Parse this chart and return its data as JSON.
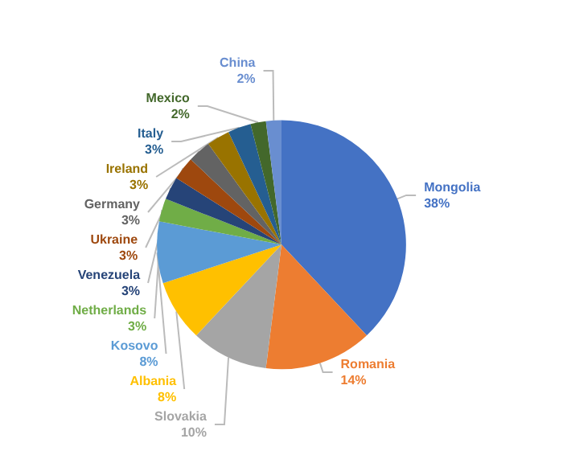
{
  "chart_data": {
    "type": "pie",
    "categories": [
      "Mongolia",
      "Romania",
      "Slovakia",
      "Albania",
      "Kosovo",
      "Netherlands",
      "Venezuela",
      "Ukraine",
      "Germany",
      "Ireland",
      "Italy",
      "Mexico",
      "China"
    ],
    "values": [
      38,
      14,
      10,
      8,
      8,
      3,
      3,
      3,
      3,
      3,
      3,
      2,
      2
    ],
    "colors": [
      "#4472c4",
      "#ed7d31",
      "#a5a5a5",
      "#ffc000",
      "#5b9bd5",
      "#70ad47",
      "#264478",
      "#9e480e",
      "#636363",
      "#997300",
      "#255e91",
      "#43682b",
      "#698ed0"
    ],
    "value_labels": [
      "38%",
      "14%",
      "10%",
      "8%",
      "8%",
      "3%",
      "3%",
      "3%",
      "3%",
      "3%",
      "3%",
      "2%",
      "2%"
    ],
    "legend": false
  }
}
